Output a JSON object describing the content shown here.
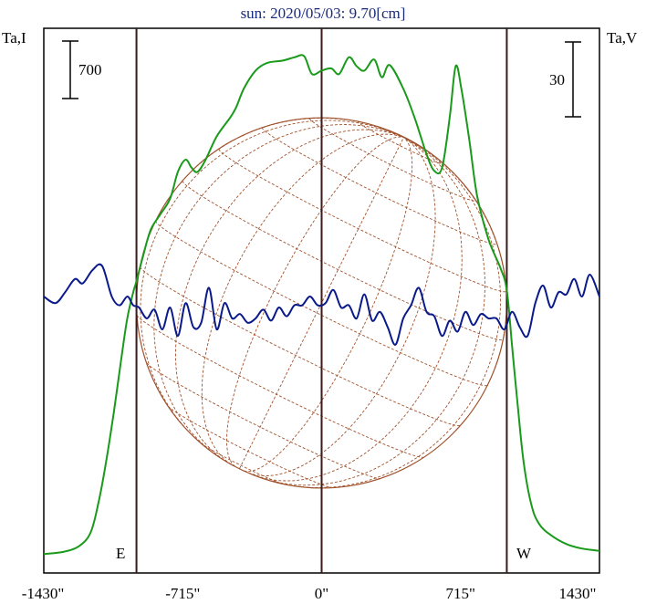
{
  "chart_data": {
    "type": "line",
    "title": "sun: 2020/05/03: 9.70[cm]",
    "left_axis_label": "Ta,I",
    "right_axis_label": "Ta,V",
    "left_scale_bar": "700",
    "right_scale_bar": "30",
    "east_label": "E",
    "west_label": "W",
    "x_ticks": [
      "-1430\"",
      "-715\"",
      "0\"",
      "715\"",
      "1430\""
    ],
    "x_tick_values": [
      -1430,
      -715,
      0,
      715,
      1430
    ],
    "xlim": [
      -1430,
      1430
    ],
    "vertical_lines_arcsec": [
      -953,
      0,
      953
    ],
    "colors": {
      "I": "#1a9a1a",
      "V": "#0a1a8a",
      "disk": "#a0522d",
      "frame": "#000000",
      "title": "#1a2a7a"
    },
    "series": [
      {
        "key": "I",
        "x": [
          -1430,
          -1330,
          -1250,
          -1190,
          -1150,
          -1110,
          -1070,
          -1030,
          -1000,
          -970,
          -953,
          -920,
          -880,
          -830,
          -780,
          -740,
          -700,
          -670,
          -640,
          -600,
          -540,
          -470,
          -440,
          -400,
          -340,
          -280,
          -200,
          -140,
          -90,
          -50,
          0,
          50,
          90,
          140,
          180,
          220,
          270,
          310,
          350,
          420,
          480,
          540,
          580,
          620,
          660,
          690,
          720,
          760,
          800,
          860,
          920,
          953,
          980,
          1010,
          1040,
          1080,
          1120,
          1180,
          1260,
          1340,
          1430
        ],
        "y": [
          30,
          50,
          100,
          220,
          480,
          850,
          1300,
          1800,
          2150,
          2380,
          2480,
          2700,
          2940,
          3080,
          3220,
          3460,
          3570,
          3500,
          3460,
          3560,
          3780,
          3950,
          4040,
          4210,
          4370,
          4440,
          4460,
          4490,
          4500,
          4340,
          4370,
          4390,
          4340,
          4490,
          4410,
          4370,
          4470,
          4310,
          4420,
          4210,
          3940,
          3620,
          3470,
          3500,
          3960,
          4410,
          4200,
          3750,
          3250,
          2850,
          2600,
          2400,
          1900,
          1350,
          850,
          470,
          300,
          200,
          120,
          80,
          60
        ]
      },
      {
        "key": "V",
        "x": [
          -1430,
          -1370,
          -1320,
          -1270,
          -1230,
          -1180,
          -1130,
          -1080,
          -1040,
          -1000,
          -970,
          -940,
          -900,
          -860,
          -820,
          -780,
          -740,
          -700,
          -660,
          -620,
          -580,
          -540,
          -500,
          -460,
          -420,
          -380,
          -340,
          -300,
          -260,
          -220,
          -180,
          -140,
          -100,
          -60,
          -20,
          20,
          60,
          100,
          140,
          180,
          220,
          260,
          300,
          340,
          380,
          420,
          460,
          500,
          540,
          580,
          620,
          660,
          700,
          740,
          780,
          820,
          860,
          900,
          940,
          980,
          1020,
          1060,
          1100,
          1140,
          1180,
          1220,
          1260,
          1300,
          1340,
          1380,
          1430
        ],
        "y": [
          0,
          -3,
          2,
          8,
          6,
          12,
          14,
          0,
          -4,
          0,
          -4,
          -5,
          -10,
          -6,
          -15,
          -5,
          -18,
          -3,
          -14,
          -12,
          4,
          -15,
          -3,
          -10,
          -8,
          -12,
          -10,
          -6,
          -11,
          -5,
          -9,
          -4,
          -4,
          0,
          -4,
          -3,
          3,
          -5,
          -4,
          -10,
          1,
          -11,
          -7,
          -14,
          -22,
          -10,
          -4,
          4,
          -7,
          -9,
          -18,
          -11,
          -16,
          -7,
          -13,
          -8,
          -10,
          -10,
          -15,
          -7,
          -14,
          -18,
          -3,
          5,
          -5,
          2,
          1,
          8,
          0,
          10,
          0
        ]
      }
    ]
  }
}
